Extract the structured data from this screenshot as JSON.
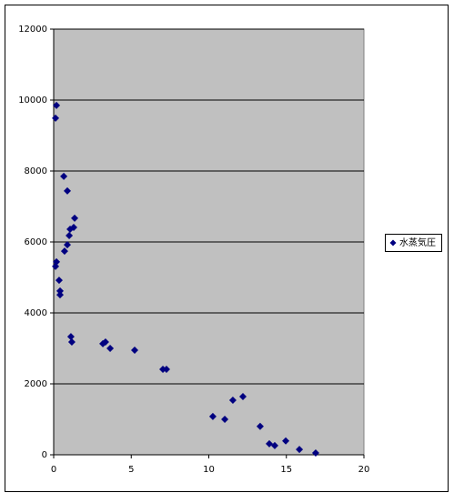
{
  "chart_data": {
    "type": "scatter",
    "series": [
      {
        "name": "水蒸気圧",
        "color": "#000080",
        "x": [
          0.18,
          0.12,
          0.65,
          0.88,
          1.35,
          1.29,
          1.06,
          1.0,
          0.88,
          0.7,
          0.18,
          0.12,
          0.35,
          0.41,
          0.41,
          1.11,
          1.17,
          3.17,
          3.34,
          3.64,
          5.22,
          7.04,
          7.27,
          10.26,
          11.03,
          11.55,
          12.2,
          13.31,
          13.9,
          14.25,
          14.96,
          15.84,
          16.89
        ],
        "values": [
          9850,
          9490,
          7850,
          7440,
          6670,
          6410,
          6360,
          6180,
          5920,
          5740,
          5440,
          5310,
          4920,
          4620,
          4510,
          3330,
          3180,
          3130,
          3180,
          3000,
          2950,
          2410,
          2410,
          1080,
          1000,
          1540,
          1640,
          800,
          310,
          260,
          390,
          150,
          50
        ]
      }
    ],
    "xlim": [
      0,
      20
    ],
    "xticks": [
      0,
      5,
      10,
      15,
      20
    ],
    "ylim": [
      0,
      12000
    ],
    "yticks": [
      0,
      2000,
      4000,
      6000,
      8000,
      10000,
      12000
    ],
    "grid": true,
    "legend": "right",
    "plot_background": "#c0c0c0"
  }
}
